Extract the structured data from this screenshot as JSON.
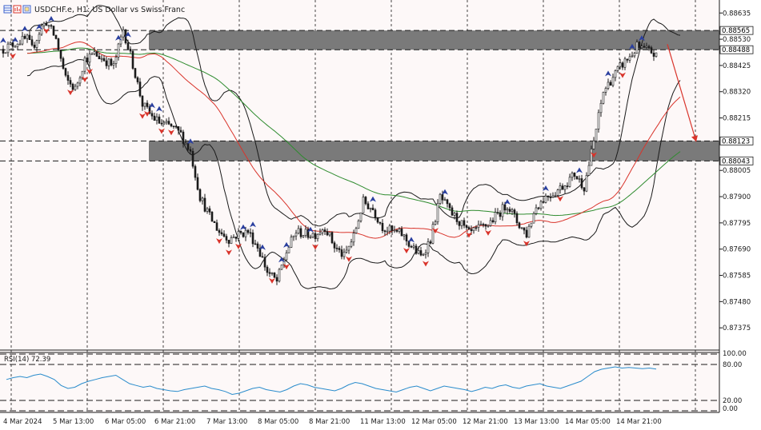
{
  "header": {
    "symbol_title": "USDCHF.e, H1:  US Dollar vs Swiss Franc",
    "icon_names": [
      "chart-grid-icon",
      "bar-chart-icon",
      "copy-icon"
    ]
  },
  "colors": {
    "background": "#fdf8f8",
    "bull_body": "#ffffff",
    "bear_body": "#1a1a1a",
    "bollinger": "#1a1a1a",
    "ma_fast": "#d9342b",
    "ma_slow": "#2e8b2e",
    "zone": "#7a7a7a",
    "rsi": "#2a8ccc",
    "arrow_up": "#2a3f9f",
    "arrow_down": "#d9342b"
  },
  "chart_data": [
    {
      "type": "candlestick",
      "title": "USDCHF.e, H1:  US Dollar vs Swiss Franc",
      "ylim": [
        0.87286,
        0.88687
      ],
      "y_ticks": [
        "0.88635",
        "0.88530",
        "0.88425",
        "0.88320",
        "0.88215",
        "0.88005",
        "0.87900",
        "0.87795",
        "0.87690",
        "0.87585",
        "0.87480",
        "0.87375"
      ],
      "x_ticks": [
        "4 Mar 2024",
        "5 Mar 13:00",
        "6 Mar 05:00",
        "6 Mar 21:00",
        "7 Mar 13:00",
        "8 Mar 05:00",
        "8 Mar 21:00",
        "11 Mar 13:00",
        "12 Mar 05:00",
        "12 Mar 21:00",
        "13 Mar 13:00",
        "14 Mar 05:00",
        "14 Mar 21:00"
      ],
      "price_tags": [
        "0.88565",
        "0.88488",
        "0.88123",
        "0.88043"
      ],
      "zones": [
        {
          "top": 0.88565,
          "bottom": 0.88488
        },
        {
          "top": 0.88123,
          "bottom": 0.88043
        }
      ],
      "grid": true,
      "path": [
        [
          0,
          0.8849
        ],
        [
          6,
          0.8852
        ],
        [
          10,
          0.8853
        ],
        [
          12,
          0.8849
        ],
        [
          16,
          0.8858
        ],
        [
          18,
          0.886
        ],
        [
          22,
          0.8853
        ],
        [
          26,
          0.8837
        ],
        [
          30,
          0.8833
        ],
        [
          34,
          0.8845
        ],
        [
          38,
          0.8847
        ],
        [
          42,
          0.8845
        ],
        [
          46,
          0.8842
        ],
        [
          50,
          0.8857
        ],
        [
          54,
          0.8843
        ],
        [
          58,
          0.8827
        ],
        [
          62,
          0.8822
        ],
        [
          66,
          0.8819
        ],
        [
          70,
          0.8818
        ],
        [
          74,
          0.8815
        ],
        [
          78,
          0.8808
        ],
        [
          82,
          0.879
        ],
        [
          86,
          0.8782
        ],
        [
          90,
          0.8776
        ],
        [
          94,
          0.8773
        ],
        [
          98,
          0.8775
        ],
        [
          102,
          0.8776
        ],
        [
          106,
          0.877
        ],
        [
          110,
          0.876
        ],
        [
          114,
          0.8756
        ],
        [
          118,
          0.8768
        ],
        [
          122,
          0.8776
        ],
        [
          126,
          0.8775
        ],
        [
          130,
          0.8775
        ],
        [
          134,
          0.8778
        ],
        [
          138,
          0.877
        ],
        [
          142,
          0.8766
        ],
        [
          146,
          0.8774
        ],
        [
          150,
          0.8788
        ],
        [
          154,
          0.8785
        ],
        [
          158,
          0.8778
        ],
        [
          162,
          0.8776
        ],
        [
          166,
          0.8775
        ],
        [
          170,
          0.877
        ],
        [
          174,
          0.8766
        ],
        [
          178,
          0.8773
        ],
        [
          182,
          0.879
        ],
        [
          186,
          0.8784
        ],
        [
          190,
          0.878
        ],
        [
          194,
          0.8775
        ],
        [
          198,
          0.8777
        ],
        [
          202,
          0.8779
        ],
        [
          206,
          0.8783
        ],
        [
          210,
          0.8787
        ],
        [
          214,
          0.878
        ],
        [
          218,
          0.8775
        ],
        [
          222,
          0.8786
        ],
        [
          226,
          0.879
        ],
        [
          230,
          0.8792
        ],
        [
          234,
          0.8795
        ],
        [
          238,
          0.8799
        ],
        [
          242,
          0.8794
        ],
        [
          246,
          0.8812
        ],
        [
          250,
          0.8832
        ],
        [
          254,
          0.8838
        ],
        [
          258,
          0.8843
        ],
        [
          262,
          0.8847
        ],
        [
          264,
          0.885
        ],
        [
          266,
          0.8849
        ],
        [
          270,
          0.8848
        ],
        [
          272,
          0.8846
        ]
      ],
      "up_arrows": [
        0,
        5,
        9,
        15,
        20,
        48,
        52,
        62,
        65,
        78,
        100,
        104,
        108,
        116,
        118,
        128,
        154,
        170,
        184,
        210,
        226,
        240,
        252,
        262,
        266
      ],
      "down_arrows": [
        4,
        18,
        28,
        34,
        36,
        58,
        60,
        66,
        70,
        90,
        94,
        98,
        112,
        118,
        130,
        144,
        168,
        176,
        180,
        194,
        202,
        218,
        232,
        246,
        258
      ],
      "forecast_arrow": {
        "from": 0.8851,
        "to": 0.8812
      }
    },
    {
      "type": "line",
      "title": "RSI(14) 72.39",
      "ylim": [
        0,
        100
      ],
      "y_ticks": [
        "100.00",
        "80.00",
        "20.00",
        "0.00"
      ],
      "levels": [
        80,
        20
      ],
      "values": [
        55,
        58,
        60,
        58,
        62,
        64,
        60,
        55,
        45,
        40,
        42,
        48,
        52,
        55,
        58,
        60,
        62,
        55,
        48,
        45,
        42,
        44,
        40,
        38,
        36,
        35,
        38,
        40,
        42,
        44,
        40,
        38,
        35,
        30,
        32,
        36,
        40,
        42,
        38,
        36,
        34,
        38,
        44,
        48,
        46,
        42,
        40,
        38,
        36,
        40,
        46,
        50,
        48,
        44,
        40,
        38,
        36,
        34,
        38,
        42,
        44,
        40,
        36,
        40,
        44,
        42,
        40,
        38,
        35,
        38,
        42,
        40,
        44,
        46,
        42,
        40,
        44,
        46,
        48,
        44,
        42,
        40,
        44,
        48,
        52,
        60,
        68,
        72,
        74,
        76,
        74,
        75,
        74,
        73,
        74,
        72.39
      ]
    }
  ]
}
